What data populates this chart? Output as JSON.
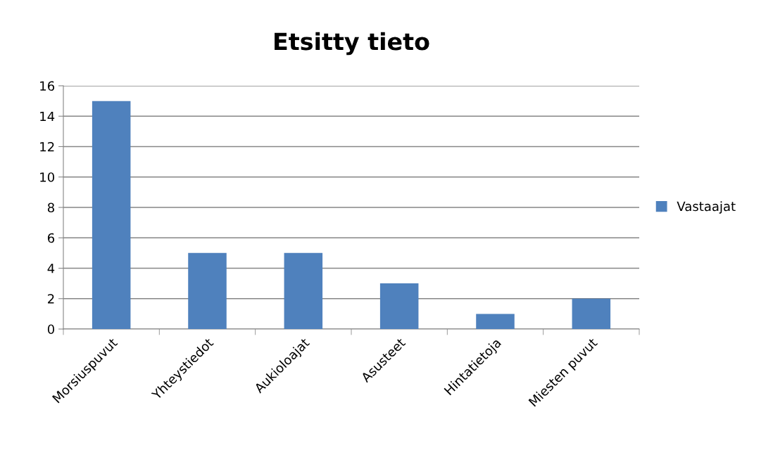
{
  "chart_data": {
    "type": "bar",
    "title": "Etsitty tieto",
    "categories": [
      "Morsiuspuvut",
      "Yhteystiedot",
      "Aukioloajat",
      "Asusteet",
      "Hintatietoja",
      "Miesten puvut"
    ],
    "series": [
      {
        "name": "Vastaajat",
        "color": "#4f81bd",
        "values": [
          15,
          5,
          5,
          3,
          1,
          2
        ]
      }
    ],
    "ylim": [
      0,
      16
    ],
    "yticks": [
      0,
      2,
      4,
      6,
      8,
      10,
      12,
      14,
      16
    ],
    "grid": "y",
    "legend": "right"
  }
}
